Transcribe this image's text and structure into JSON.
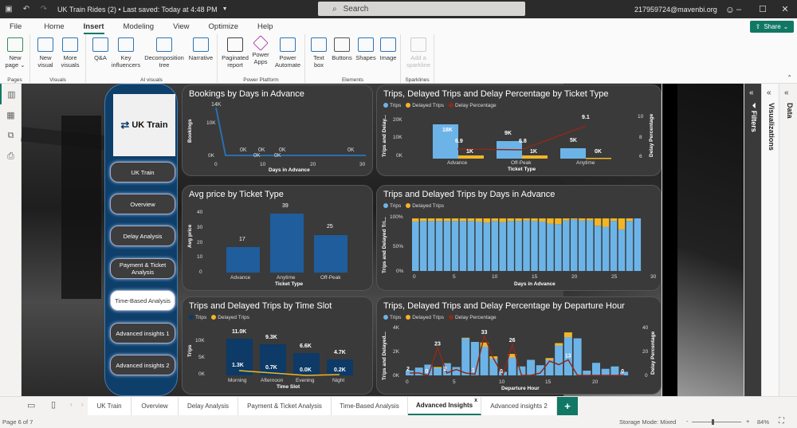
{
  "titlebar": {
    "document_title": "UK Train Rides (2) • Last saved: Today at 4:48 PM",
    "search_placeholder": "Search",
    "account": "217959724@mavenbi.org"
  },
  "menu": {
    "items": [
      "File",
      "Home",
      "Insert",
      "Modeling",
      "View",
      "Optimize",
      "Help"
    ],
    "active": "Insert",
    "share_label": "Share"
  },
  "ribbon": {
    "groups": [
      {
        "label": "Pages",
        "buttons": [
          "New page"
        ]
      },
      {
        "label": "Visuals",
        "buttons": [
          "New visual",
          "More visuals"
        ]
      },
      {
        "label": "AI visuals",
        "buttons": [
          "Q&A",
          "Key influencers",
          "Decomposition tree",
          "Narrative"
        ]
      },
      {
        "label": "Power Platform",
        "buttons": [
          "Paginated report",
          "Power Apps",
          "Power Automate"
        ]
      },
      {
        "label": "Elements",
        "buttons": [
          "Text box",
          "Buttons",
          "Shapes",
          "Image"
        ]
      },
      {
        "label": "Sparklines",
        "buttons": [
          "Add a sparkline"
        ]
      }
    ]
  },
  "nav": {
    "logo_text": "UK Train",
    "buttons": [
      "UK Train",
      "Overview",
      "Delay Analysis",
      "Payment & Ticket Analysis",
      "Time-Based Analysis",
      "Advanced insights 1",
      "Advanced insights 2"
    ],
    "active": "Time-Based Analysis"
  },
  "colors": {
    "trips": "#6cb4e8",
    "delayed": "#f2b526",
    "delay_pct": "#8b2a1a",
    "dark_bar": "#1f5d9c",
    "navy_bar": "#0d3a66",
    "accent": "#117865"
  },
  "chart_data": [
    {
      "type": "line",
      "title": "Bookings by Days in Advance",
      "xlabel": "Days in Advance",
      "ylabel": "Bookings",
      "x": [
        1,
        2,
        6,
        9,
        10,
        13,
        14,
        28
      ],
      "values": [
        14000,
        0,
        0,
        0,
        0,
        0,
        0,
        0
      ],
      "labels": [
        "14K",
        "0K",
        "0K",
        "0K",
        "0K",
        "0K",
        "0K",
        "0K"
      ],
      "yticks": [
        "0K",
        "10K"
      ],
      "xticks": [
        "0",
        "10",
        "20",
        "30"
      ]
    },
    {
      "type": "bar",
      "title": "Trips, Delayed Trips and Delay Percentage by Ticket Type",
      "xlabel": "Ticket Type",
      "ylabel": "Trips and Delay...",
      "y2label": "Delay Percentage",
      "categories": [
        "Advance",
        "Off-Peak",
        "Anytime"
      ],
      "series": [
        {
          "name": "Trips",
          "values": [
            18000,
            9000,
            5000
          ],
          "labels": [
            "18K",
            "9K",
            "5K"
          ]
        },
        {
          "name": "Delayed Trips",
          "values": [
            1000,
            1000,
            0
          ],
          "labels": [
            "1K",
            "1K",
            "0K"
          ]
        },
        {
          "name": "Delay Percentage",
          "values": [
            6.9,
            6.8,
            9.1
          ]
        }
      ],
      "yticks": [
        "0K",
        "10K",
        "20K"
      ],
      "y2ticks": [
        "6",
        "8",
        "10"
      ]
    },
    {
      "type": "bar",
      "title": "Avg price by Ticket Type",
      "xlabel": "Ticket Type",
      "ylabel": "Avg price",
      "categories": [
        "Advance",
        "Anytime",
        "Off-Peak"
      ],
      "values": [
        17,
        39,
        25
      ],
      "yticks": [
        "0",
        "10",
        "20",
        "30",
        "40"
      ]
    },
    {
      "type": "bar",
      "title": "Trips and Delayed Trips by Days in Advance",
      "xlabel": "Days in Advance",
      "ylabel": "Trips and Delayed Tri...",
      "series": [
        {
          "name": "Trips"
        },
        {
          "name": "Delayed Trips"
        }
      ],
      "x": [
        0,
        1,
        2,
        3,
        4,
        5,
        6,
        7,
        8,
        9,
        10,
        11,
        12,
        13,
        14,
        15,
        16,
        17,
        18,
        19,
        20,
        21,
        22,
        23,
        24,
        25,
        26,
        27,
        28
      ],
      "delayed_pct": [
        6,
        5,
        5,
        5,
        5,
        5,
        5,
        5,
        6,
        8,
        5,
        7,
        5,
        5,
        4,
        5,
        6,
        10,
        11,
        4,
        2,
        4,
        4,
        14,
        16,
        5,
        21,
        5,
        0
      ],
      "yticks": [
        "0%",
        "50%",
        "100%"
      ],
      "xticks": [
        "0",
        "5",
        "10",
        "15",
        "20",
        "25",
        "30"
      ]
    },
    {
      "type": "bar",
      "title": "Trips and Delayed Trips by Time Slot",
      "xlabel": "Time Slot",
      "ylabel": "Trips",
      "categories": [
        "Morning",
        "Afternoon",
        "Evening",
        "Night"
      ],
      "series": [
        {
          "name": "Trips",
          "values": [
            11000,
            9300,
            6600,
            4700
          ],
          "labels": [
            "11.0K",
            "9.3K",
            "6.6K",
            "4.7K"
          ]
        },
        {
          "name": "Delayed Trips",
          "values": [
            1300,
            700,
            0,
            200
          ],
          "labels": [
            "1.3K",
            "0.7K",
            "0.0K",
            "0.2K"
          ]
        }
      ],
      "yticks": [
        "0K",
        "5K",
        "10K"
      ]
    },
    {
      "type": "bar",
      "title": "Trips, Delayed Trips and Delay Percentage by Departure Hour",
      "xlabel": "Departure Hour",
      "ylabel": "Trips and Delayed...",
      "y2label": "Delay Percentage",
      "x": [
        0,
        1,
        2,
        3,
        4,
        5,
        6,
        7,
        8,
        9,
        10,
        11,
        12,
        13,
        14,
        15,
        16,
        17,
        18,
        19,
        20,
        21,
        22,
        23
      ],
      "series": [
        {
          "name": "Trips",
          "values": [
            400,
            650,
            900,
            600,
            1000,
            700,
            3100,
            2800,
            2400,
            1400,
            300,
            1500,
            750,
            1300,
            850,
            1300,
            2500,
            3200,
            3100,
            400,
            1050,
            550,
            750,
            300
          ]
        },
        {
          "name": "Delayed Trips",
          "values": [
            10,
            0,
            0,
            100,
            20,
            0,
            50,
            0,
            350,
            200,
            0,
            300,
            0,
            0,
            0,
            150,
            200,
            400,
            0,
            0,
            0,
            0,
            0,
            0
          ]
        },
        {
          "name": "Delay Percentage",
          "values": [
            2,
            2,
            0,
            23,
            2,
            5,
            2,
            1,
            33,
            14,
            0,
            26,
            0,
            0,
            2,
            12,
            9,
            13,
            0,
            0,
            0,
            0,
            0,
            0
          ]
        }
      ],
      "point_labels": [
        "2",
        "0",
        "23",
        "2",
        "1",
        "33",
        "0",
        "26",
        "13",
        "0"
      ],
      "yticks": [
        "0K",
        "2K",
        "4K"
      ],
      "y2ticks": [
        "0",
        "20",
        "40"
      ],
      "xticks": [
        "0",
        "5",
        "10",
        "15",
        "20"
      ]
    }
  ],
  "panes": {
    "filters": "Filters",
    "visualizations": "Visualizations",
    "data": "Data"
  },
  "tabs": {
    "items": [
      "UK Train",
      "Overview",
      "Delay Analysis",
      "Payment & Ticket Analysis",
      "Time-Based Analysis",
      "Advanced Insights",
      "Advanced insights 2"
    ],
    "active": "Advanced Insights",
    "add": "+"
  },
  "status": {
    "page": "Page 6 of 7",
    "storage": "Storage Mode: Mixed",
    "zoom": "84%"
  }
}
